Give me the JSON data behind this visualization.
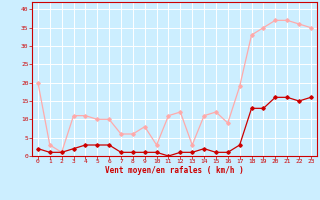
{
  "hours": [
    0,
    1,
    2,
    3,
    4,
    5,
    6,
    7,
    8,
    9,
    10,
    11,
    12,
    13,
    14,
    15,
    16,
    17,
    18,
    19,
    20,
    21,
    22,
    23
  ],
  "wind_avg": [
    2,
    1,
    1,
    2,
    3,
    3,
    3,
    1,
    1,
    1,
    1,
    0,
    1,
    1,
    2,
    1,
    1,
    3,
    13,
    13,
    16,
    16,
    15,
    16
  ],
  "wind_gust": [
    20,
    3,
    1,
    11,
    11,
    10,
    10,
    6,
    6,
    8,
    3,
    11,
    12,
    3,
    11,
    12,
    9,
    19,
    33,
    35,
    37,
    37,
    36,
    35
  ],
  "color_avg": "#cc0000",
  "color_gust": "#ffaaaa",
  "bg_color": "#cceeff",
  "grid_color": "#ffffff",
  "xlabel": "Vent moyen/en rafales ( km/h )",
  "ylim": [
    0,
    42
  ],
  "xlim": [
    -0.5,
    23.5
  ],
  "yticks": [
    0,
    5,
    10,
    15,
    20,
    25,
    30,
    35,
    40
  ],
  "xticks": [
    0,
    1,
    2,
    3,
    4,
    5,
    6,
    7,
    8,
    9,
    10,
    11,
    12,
    13,
    14,
    15,
    16,
    17,
    18,
    19,
    20,
    21,
    22,
    23
  ]
}
